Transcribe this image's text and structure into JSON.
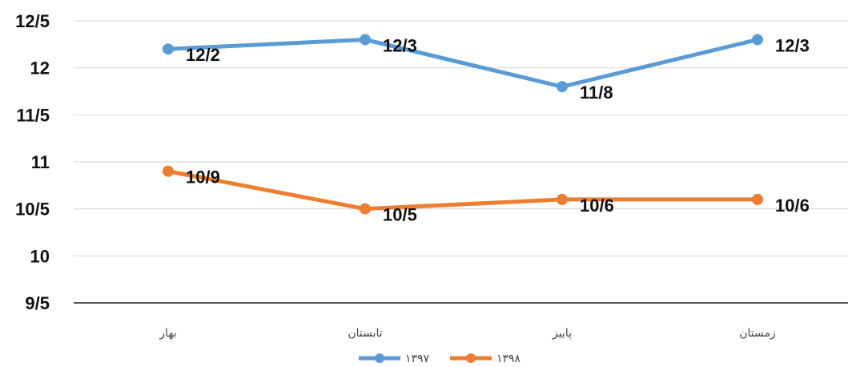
{
  "chart_data": {
    "type": "line",
    "categories": [
      "بهار",
      "تابستان",
      "پاییز",
      "زمستان"
    ],
    "series": [
      {
        "name": "۱۳۹۷",
        "color": "#5b9bd5",
        "values": [
          12.2,
          12.3,
          11.8,
          12.3
        ],
        "labels": [
          "12/2",
          "12/3",
          "11/8",
          "12/3"
        ]
      },
      {
        "name": "۱۳۹۸",
        "color": "#ed7d31",
        "values": [
          10.9,
          10.5,
          10.6,
          10.6
        ],
        "labels": [
          "10/9",
          "10/5",
          "10/6",
          "10/6"
        ]
      }
    ],
    "ylim": [
      9.5,
      12.5
    ],
    "yticks": [
      9.5,
      10,
      10.5,
      11,
      11.5,
      12,
      12.5
    ],
    "ytick_labels": [
      "9/5",
      "10",
      "10/5",
      "11",
      "11/5",
      "12",
      "12/5"
    ],
    "grid": true,
    "legend": "bottom",
    "title": "",
    "xlabel": "",
    "ylabel": ""
  }
}
